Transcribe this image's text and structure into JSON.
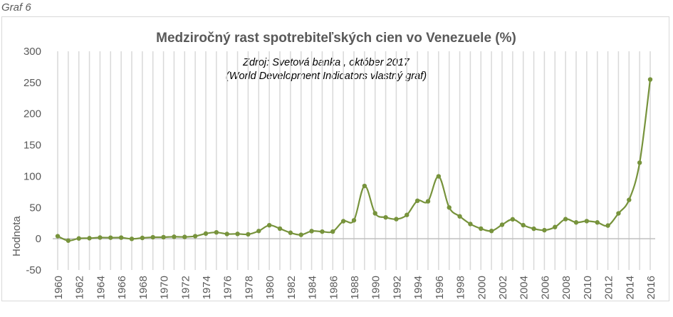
{
  "caption": "Graf 6",
  "chart_data": {
    "type": "line",
    "title": "Medziročný rast spotrebiteľských cien vo Venezuele (%)",
    "annotation": [
      "Zdroj: Svetová banka , október 2017",
      "(World Development Indicators vlastný graf)"
    ],
    "xlabel": "",
    "ylabel": "Hodnota",
    "ylim": [
      -50,
      300
    ],
    "yticks": [
      -50,
      0,
      50,
      100,
      150,
      200,
      250,
      300
    ],
    "grid": "vertical",
    "color": "#77933c",
    "x": [
      1960,
      1961,
      1962,
      1963,
      1964,
      1965,
      1966,
      1967,
      1968,
      1969,
      1970,
      1971,
      1972,
      1973,
      1974,
      1975,
      1976,
      1977,
      1978,
      1979,
      1980,
      1981,
      1982,
      1983,
      1984,
      1985,
      1986,
      1987,
      1988,
      1989,
      1990,
      1991,
      1992,
      1993,
      1994,
      1995,
      1996,
      1997,
      1998,
      1999,
      2000,
      2001,
      2002,
      2003,
      2004,
      2005,
      2006,
      2007,
      2008,
      2009,
      2010,
      2011,
      2012,
      2013,
      2014,
      2015,
      2016
    ],
    "values": [
      4.1,
      -3.0,
      0.5,
      0.9,
      1.9,
      1.7,
      1.8,
      -0.2,
      1.3,
      2.4,
      2.5,
      3.2,
      2.9,
      4.1,
      8.3,
      10.2,
      7.6,
      7.8,
      7.1,
      12.4,
      21.6,
      16.2,
      9.6,
      6.3,
      12.2,
      11.4,
      11.5,
      28.1,
      29.5,
      84.5,
      40.7,
      34.2,
      31.4,
      38.1,
      60.8,
      59.9,
      99.9,
      50.0,
      35.8,
      23.6,
      16.2,
      12.5,
      22.4,
      31.1,
      21.7,
      16.0,
      13.7,
      18.7,
      31.4,
      26.1,
      28.2,
      26.1,
      21.1,
      40.6,
      62.2,
      121.7,
      254.9
    ]
  }
}
